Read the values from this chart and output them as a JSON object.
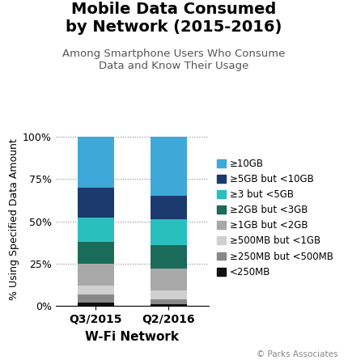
{
  "title_line1": "Mobile Data Consumed",
  "title_line2": "by Network (2015-2016)",
  "subtitle": "Among Smartphone Users Who Consume\nData and Know Their Usage",
  "xlabel": "W-Fi Network",
  "ylabel": "% Using Specified Data Amount",
  "categories": [
    "Q3/2015",
    "Q2/2016"
  ],
  "legend_labels": [
    "≥10GB",
    "≥5GB but <10GB",
    "≥3 but <5GB",
    "≥2GB but <3GB",
    "≥1GB but <2GB",
    "≥500MB but <1GB",
    "≥250MB but <500MB",
    "<250MB"
  ],
  "colors": [
    "#3EA8D8",
    "#1B3A6E",
    "#2ABFBF",
    "#1B6B5A",
    "#A8A8A8",
    "#D0D0D0",
    "#888888",
    "#111111"
  ],
  "data": {
    "Q3/2015": [
      30,
      18,
      14,
      13,
      13,
      5,
      5,
      2
    ],
    "Q2/2016": [
      35,
      14,
      15,
      14,
      13,
      5,
      3,
      1
    ]
  },
  "yticks": [
    0,
    25,
    50,
    75,
    100
  ],
  "ytick_labels": [
    "0%",
    "25%",
    "50%",
    "75%",
    "100%"
  ],
  "copyright": "© Parks Associates",
  "background_color": "#ffffff",
  "title_fontsize": 14,
  "subtitle_fontsize": 9.5,
  "ylabel_fontsize": 9,
  "xlabel_fontsize": 11,
  "legend_fontsize": 8.5,
  "bar_width": 0.5
}
